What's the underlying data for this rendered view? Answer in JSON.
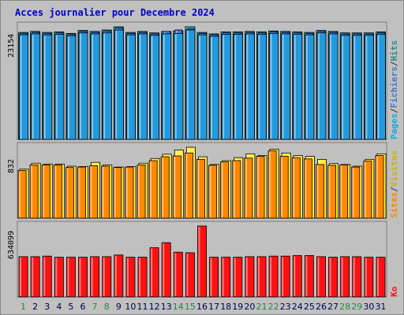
{
  "title": "Acces journalier pour Decembre 2024",
  "colors": {
    "background": "#c0c0c0",
    "pages": "#4477dd",
    "fichiers": "#2299dd",
    "hits": "#11aadd",
    "visites": "#ffee44",
    "sites": "#ff8800",
    "ko": "#ff1111",
    "title": "#0000cc",
    "weekend_day": "#228844",
    "weekday": "#000055"
  },
  "chart_data": [
    {
      "type": "bar",
      "panel": "top",
      "ymax_label": "23154",
      "legend": [
        "Pages",
        "/",
        "Fichiers",
        "/",
        "Hits"
      ],
      "categories": [
        "1",
        "2",
        "3",
        "4",
        "5",
        "6",
        "7",
        "8",
        "9",
        "10",
        "11",
        "12",
        "13",
        "14",
        "15",
        "16",
        "17",
        "18",
        "19",
        "20",
        "21",
        "22",
        "23",
        "24",
        "25",
        "26",
        "27",
        "28",
        "29",
        "30",
        "31"
      ],
      "series": [
        {
          "name": "Hits",
          "values": [
            22000,
            22200,
            22000,
            22100,
            21800,
            22400,
            22200,
            22500,
            23154,
            22000,
            22200,
            21900,
            22200,
            22300,
            23154,
            22000,
            21700,
            22100,
            22100,
            22200,
            22100,
            22300,
            22200,
            22100,
            22000,
            22400,
            22200,
            21900,
            21900,
            21900,
            22100
          ]
        },
        {
          "name": "Fichiers",
          "values": [
            21500,
            21700,
            21500,
            21600,
            21300,
            21900,
            21700,
            21900,
            22500,
            21500,
            21700,
            21400,
            21700,
            21800,
            22500,
            21500,
            21200,
            21600,
            21600,
            21700,
            21600,
            21800,
            21700,
            21600,
            21500,
            21900,
            21700,
            21400,
            21400,
            21400,
            21600
          ]
        },
        {
          "name": "Pages",
          "values": [
            21800,
            22000,
            21800,
            21900,
            21600,
            22200,
            22000,
            22300,
            22900,
            21800,
            22000,
            21700,
            22200,
            22500,
            22700,
            21800,
            21500,
            21900,
            21900,
            22000,
            21900,
            22100,
            22000,
            21900,
            21800,
            22200,
            22000,
            21700,
            21700,
            21700,
            21900
          ]
        }
      ]
    },
    {
      "type": "bar",
      "panel": "middle",
      "ymax_label": "832",
      "legend": [
        "Sites",
        "/",
        "Visites"
      ],
      "categories": [
        "1",
        "2",
        "3",
        "4",
        "5",
        "6",
        "7",
        "8",
        "9",
        "10",
        "11",
        "12",
        "13",
        "14",
        "15",
        "16",
        "17",
        "18",
        "19",
        "20",
        "21",
        "22",
        "23",
        "24",
        "25",
        "26",
        "27",
        "28",
        "29",
        "30",
        "31"
      ],
      "series": [
        {
          "name": "Visites",
          "values": [
            575,
            645,
            635,
            635,
            610,
            605,
            655,
            625,
            600,
            605,
            645,
            700,
            750,
            800,
            832,
            720,
            630,
            675,
            710,
            755,
            735,
            810,
            765,
            735,
            725,
            690,
            640,
            630,
            610,
            690,
            755
          ]
        },
        {
          "name": "Sites",
          "values": [
            560,
            625,
            625,
            625,
            595,
            600,
            615,
            610,
            595,
            600,
            625,
            675,
            720,
            730,
            765,
            690,
            620,
            660,
            675,
            705,
            725,
            790,
            725,
            710,
            695,
            630,
            620,
            625,
            600,
            670,
            735
          ]
        }
      ]
    },
    {
      "type": "bar",
      "panel": "bottom",
      "ymax_label": "634099",
      "legend": [
        "Ko"
      ],
      "categories": [
        "1",
        "2",
        "3",
        "4",
        "5",
        "6",
        "7",
        "8",
        "9",
        "10",
        "11",
        "12",
        "13",
        "14",
        "15",
        "16",
        "17",
        "18",
        "19",
        "20",
        "21",
        "22",
        "23",
        "24",
        "25",
        "26",
        "27",
        "28",
        "29",
        "30",
        "31"
      ],
      "series": [
        {
          "name": "Ko",
          "values": [
            360000,
            360000,
            365000,
            355000,
            355000,
            355000,
            360000,
            360000,
            375000,
            355000,
            355000,
            440000,
            485000,
            400000,
            395000,
            634099,
            355000,
            355000,
            355000,
            360000,
            360000,
            365000,
            365000,
            370000,
            370000,
            360000,
            355000,
            360000,
            360000,
            355000,
            355000
          ]
        }
      ]
    }
  ],
  "x_labels": {
    "days": [
      "1",
      "2",
      "3",
      "4",
      "5",
      "6",
      "7",
      "8",
      "9",
      "10",
      "11",
      "12",
      "13",
      "14",
      "15",
      "16",
      "17",
      "18",
      "19",
      "20",
      "21",
      "22",
      "23",
      "24",
      "25",
      "26",
      "27",
      "28",
      "29",
      "30",
      "31"
    ],
    "weekend": [
      "1",
      "7",
      "8",
      "14",
      "15",
      "21",
      "22",
      "28",
      "29"
    ]
  }
}
